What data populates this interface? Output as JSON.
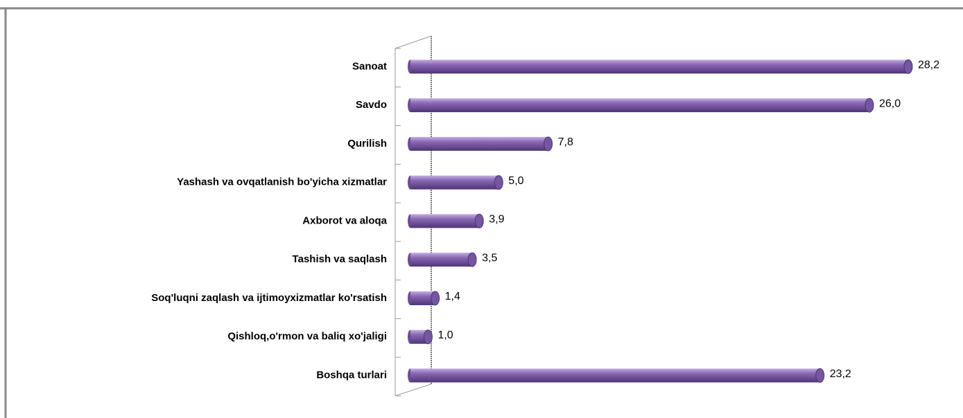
{
  "chart_data": {
    "type": "bar",
    "orientation": "horizontal",
    "categories": [
      "Sanoat",
      "Savdo",
      "Qurilish",
      "Yashash va ovqatlanish  bo'yicha xizmatlar",
      "Axborot va aloqa",
      "Tashish va saqlash",
      "Soq'luqni zaqlash va ijtimoyxizmatlar ko'rsatish",
      "Qishloq,o'rmon va baliq xo'jaligi",
      "Boshqa turlari"
    ],
    "values": [
      28.2,
      26.0,
      7.8,
      5.0,
      3.9,
      3.5,
      1.4,
      1.0,
      23.2
    ],
    "value_labels": [
      "28,2",
      "26,0",
      "7,8",
      "5,0",
      "3,9",
      "3,5",
      "1,4",
      "1,0",
      "23,2"
    ],
    "color": "#8462ad"
  }
}
